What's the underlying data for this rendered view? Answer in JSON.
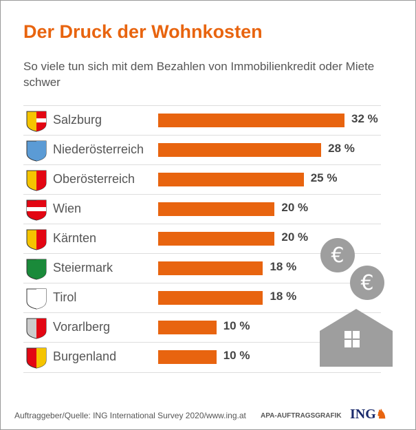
{
  "title": "Der Druck der Wohnkosten",
  "subtitle": "So viele tun sich mit dem Bezahlen von Immobilienkredit oder Miete schwer",
  "footer": {
    "source": "Auftraggeber/Quelle: ING International Survey 2020/www.ing.at",
    "credit": "APA-AUFTRAGSGRAFIK",
    "logo": "ING"
  },
  "colors": {
    "accent": "#e8640f",
    "icon": "#9e9e9e"
  },
  "chart_data": {
    "type": "bar",
    "orientation": "horizontal",
    "title": "Der Druck der Wohnkosten",
    "categories": [
      "Salzburg",
      "Niederösterreich",
      "Oberösterreich",
      "Wien",
      "Kärnten",
      "Steiermark",
      "Tirol",
      "Vorarlberg",
      "Burgenland"
    ],
    "values": [
      32,
      28,
      25,
      20,
      20,
      18,
      18,
      10,
      10
    ],
    "value_labels": [
      "32 %",
      "28 %",
      "25 %",
      "20 %",
      "20 %",
      "18 %",
      "18 %",
      "10 %",
      "10 %"
    ],
    "unit": "%",
    "xlim": [
      0,
      32
    ],
    "grid": false
  }
}
